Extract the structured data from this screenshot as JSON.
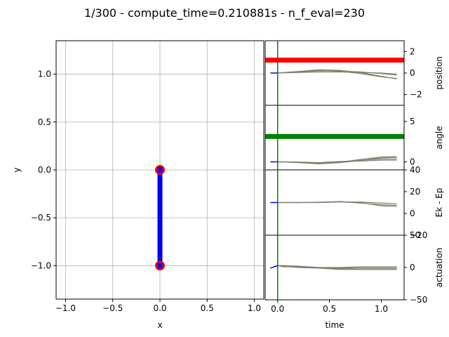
{
  "title": "1/300 - compute_time=0.210881s - n_f_eval=230",
  "colors": {
    "pendulum": "#0000ff",
    "mass": "#ff0000",
    "position_bar": "#ff0000",
    "angle_bar": "#008000",
    "time_marker": "#008000",
    "predictions": "#808070",
    "history": "#0000ff",
    "grid": "#b0b0b0"
  },
  "chart_data": [
    {
      "type": "scatter",
      "name": "pendulum",
      "xlabel": "x",
      "ylabel": "y",
      "xlim": [
        -1.1,
        1.1
      ],
      "ylim": [
        -1.35,
        1.35
      ],
      "grid": true,
      "xticks": [
        "−1.0",
        "−0.5",
        "0.0",
        "0.5",
        "1.0"
      ],
      "yticks": [
        "−1.0",
        "−0.5",
        "0.0",
        "0.5",
        "1.0"
      ],
      "xtick_values": [
        -1.0,
        -0.5,
        0.0,
        0.5,
        1.0
      ],
      "ytick_values": [
        -1.0,
        -0.5,
        0.0,
        0.5,
        1.0
      ],
      "rod": [
        [
          0,
          0
        ],
        [
          0,
          -1
        ]
      ],
      "masses": [
        [
          0,
          0
        ],
        [
          0,
          -1
        ]
      ]
    },
    {
      "type": "line",
      "name": "position",
      "ylabel": "position",
      "xlim": [
        -0.12,
        1.22
      ],
      "ylim": [
        -3,
        3
      ],
      "yticks": [
        "−2",
        "0",
        "2"
      ],
      "ytick_values": [
        -2,
        0,
        2
      ],
      "bar_level": 1.2,
      "history": {
        "x": [
          -0.07,
          0.0
        ],
        "y": [
          0.0,
          0.0
        ]
      },
      "predictions": [
        {
          "x": [
            0.0,
            0.2,
            0.4,
            0.6,
            0.8,
            1.0,
            1.15
          ],
          "y": [
            0.0,
            0.15,
            0.3,
            0.25,
            0.05,
            -0.3,
            -0.55
          ]
        },
        {
          "x": [
            0.0,
            0.2,
            0.4,
            0.6,
            0.8,
            1.0,
            1.15
          ],
          "y": [
            0.0,
            0.1,
            0.2,
            0.2,
            0.1,
            -0.05,
            -0.2
          ]
        },
        {
          "x": [
            0.0,
            0.2,
            0.4,
            0.6,
            0.8,
            1.0,
            1.15
          ],
          "y": [
            0.0,
            0.12,
            0.25,
            0.15,
            -0.05,
            -0.35,
            -0.5
          ]
        },
        {
          "x": [
            0.0,
            0.2,
            0.4,
            0.6,
            0.8,
            1.0,
            1.15
          ],
          "y": [
            0.0,
            0.05,
            0.1,
            0.1,
            0.05,
            0.0,
            -0.1
          ]
        }
      ]
    },
    {
      "type": "line",
      "name": "angle",
      "ylabel": "angle",
      "xlim": [
        -0.12,
        1.22
      ],
      "ylim": [
        -1,
        7
      ],
      "yticks": [
        "0",
        "5"
      ],
      "ytick_values": [
        0,
        5
      ],
      "bar_level": 3.14,
      "history": {
        "x": [
          -0.07,
          0.0
        ],
        "y": [
          0.0,
          0.0
        ]
      },
      "predictions": [
        {
          "x": [
            0.0,
            0.2,
            0.4,
            0.6,
            0.8,
            1.0,
            1.15
          ],
          "y": [
            0.0,
            -0.05,
            -0.2,
            -0.05,
            0.3,
            0.6,
            0.65
          ]
        },
        {
          "x": [
            0.0,
            0.2,
            0.4,
            0.6,
            0.8,
            1.0,
            1.15
          ],
          "y": [
            0.0,
            -0.05,
            -0.15,
            0.0,
            0.2,
            0.35,
            0.35
          ]
        },
        {
          "x": [
            0.0,
            0.2,
            0.4,
            0.6,
            0.8,
            1.0,
            1.15
          ],
          "y": [
            0.0,
            -0.1,
            -0.25,
            -0.1,
            0.15,
            0.5,
            0.55
          ]
        },
        {
          "x": [
            0.0,
            0.2,
            0.4,
            0.6,
            0.8,
            1.0,
            1.15
          ],
          "y": [
            0.0,
            -0.02,
            -0.1,
            0.05,
            0.1,
            0.2,
            0.2
          ]
        }
      ]
    },
    {
      "type": "line",
      "name": "energy",
      "ylabel": "Ek - Ep",
      "xlim": [
        -0.12,
        1.22
      ],
      "ylim": [
        -20,
        40
      ],
      "yticks": [
        "−20",
        "0",
        "20",
        "40"
      ],
      "ytick_values": [
        -20,
        0,
        20,
        40
      ],
      "history": {
        "x": [
          -0.07,
          0.0
        ],
        "y": [
          10.0,
          10.0
        ]
      },
      "predictions": [
        {
          "x": [
            0.0,
            0.2,
            0.4,
            0.6,
            0.8,
            1.0,
            1.15
          ],
          "y": [
            10.0,
            10.0,
            10.2,
            11.0,
            10.0,
            7.0,
            6.5
          ]
        },
        {
          "x": [
            0.0,
            0.2,
            0.4,
            0.6,
            0.8,
            1.0,
            1.15
          ],
          "y": [
            10.0,
            10.0,
            10.0,
            10.5,
            10.5,
            9.5,
            9.0
          ]
        },
        {
          "x": [
            0.0,
            0.2,
            0.4,
            0.6,
            0.8,
            1.0,
            1.15
          ],
          "y": [
            10.0,
            10.0,
            10.3,
            10.8,
            9.5,
            8.0,
            7.5
          ]
        }
      ]
    },
    {
      "type": "line",
      "name": "actuation",
      "ylabel": "actuation",
      "xlabel": "time",
      "xlim": [
        -0.12,
        1.22
      ],
      "ylim": [
        -50,
        50
      ],
      "yticks": [
        "−50",
        "0",
        "50"
      ],
      "ytick_values": [
        -50,
        0,
        50
      ],
      "xticks": [
        "0.0",
        "0.5",
        "1.0"
      ],
      "xtick_values": [
        0.0,
        0.5,
        1.0
      ],
      "history": {
        "x": [
          -0.07,
          0.0
        ],
        "y": [
          -1.0,
          3.0
        ]
      },
      "predictions": [
        {
          "x": [
            0.0,
            0.05,
            0.2,
            0.4,
            0.6,
            0.8,
            1.0,
            1.15
          ],
          "y": [
            3.0,
            3.0,
            2.0,
            0.0,
            -2.0,
            -2.0,
            -2.0,
            -2.0
          ]
        },
        {
          "x": [
            0.0,
            0.05,
            0.2,
            0.4,
            0.6,
            0.8,
            1.0,
            1.15
          ],
          "y": [
            3.0,
            2.0,
            1.0,
            -1.0,
            -3.0,
            -3.0,
            -3.0,
            -3.0
          ]
        },
        {
          "x": [
            0.0,
            0.05,
            0.2,
            0.4,
            0.6,
            0.8,
            1.0,
            1.15
          ],
          "y": [
            3.0,
            2.0,
            0.0,
            -1.0,
            -1.0,
            0.0,
            0.0,
            0.0
          ]
        },
        {
          "x": [
            0.0,
            0.05,
            0.2,
            0.4,
            0.6,
            0.8,
            1.0,
            1.15
          ],
          "y": [
            3.0,
            1.0,
            1.0,
            0.0,
            0.0,
            1.0,
            1.0,
            1.0
          ]
        }
      ]
    }
  ]
}
